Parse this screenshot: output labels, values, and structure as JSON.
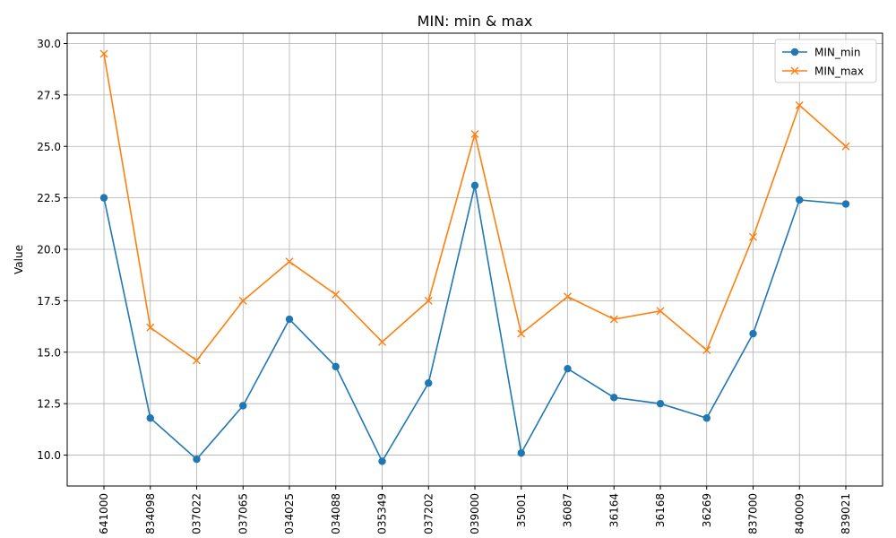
{
  "chart_data": {
    "type": "line",
    "title": "MIN: min & max",
    "xlabel": "",
    "ylabel": "Value",
    "categories": [
      "641000",
      "834098",
      "037022",
      "037065",
      "034025",
      "034088",
      "035349",
      "037202",
      "039000",
      "35001",
      "36087",
      "36164",
      "36168",
      "36269",
      "837000",
      "840009",
      "839021"
    ],
    "ylim": [
      8.5,
      30.5
    ],
    "yticks": [
      "10.0",
      "12.5",
      "15.0",
      "17.5",
      "20.0",
      "22.5",
      "25.0",
      "27.5",
      "30.0"
    ],
    "grid": true,
    "legend_position": "top-right",
    "series": [
      {
        "name": "MIN_min",
        "color": "#1f77b4",
        "marker": "circle",
        "values": [
          22.5,
          11.8,
          9.8,
          12.4,
          16.6,
          14.3,
          9.7,
          13.5,
          23.1,
          10.1,
          14.2,
          12.8,
          12.5,
          11.8,
          15.9,
          22.4,
          22.2
        ]
      },
      {
        "name": "MIN_max",
        "color": "#ff7f0e",
        "marker": "x",
        "values": [
          29.5,
          16.2,
          14.6,
          17.5,
          19.4,
          17.8,
          15.5,
          17.5,
          25.6,
          15.9,
          17.7,
          16.6,
          17.0,
          15.1,
          20.6,
          27.0,
          25.0
        ]
      }
    ]
  }
}
